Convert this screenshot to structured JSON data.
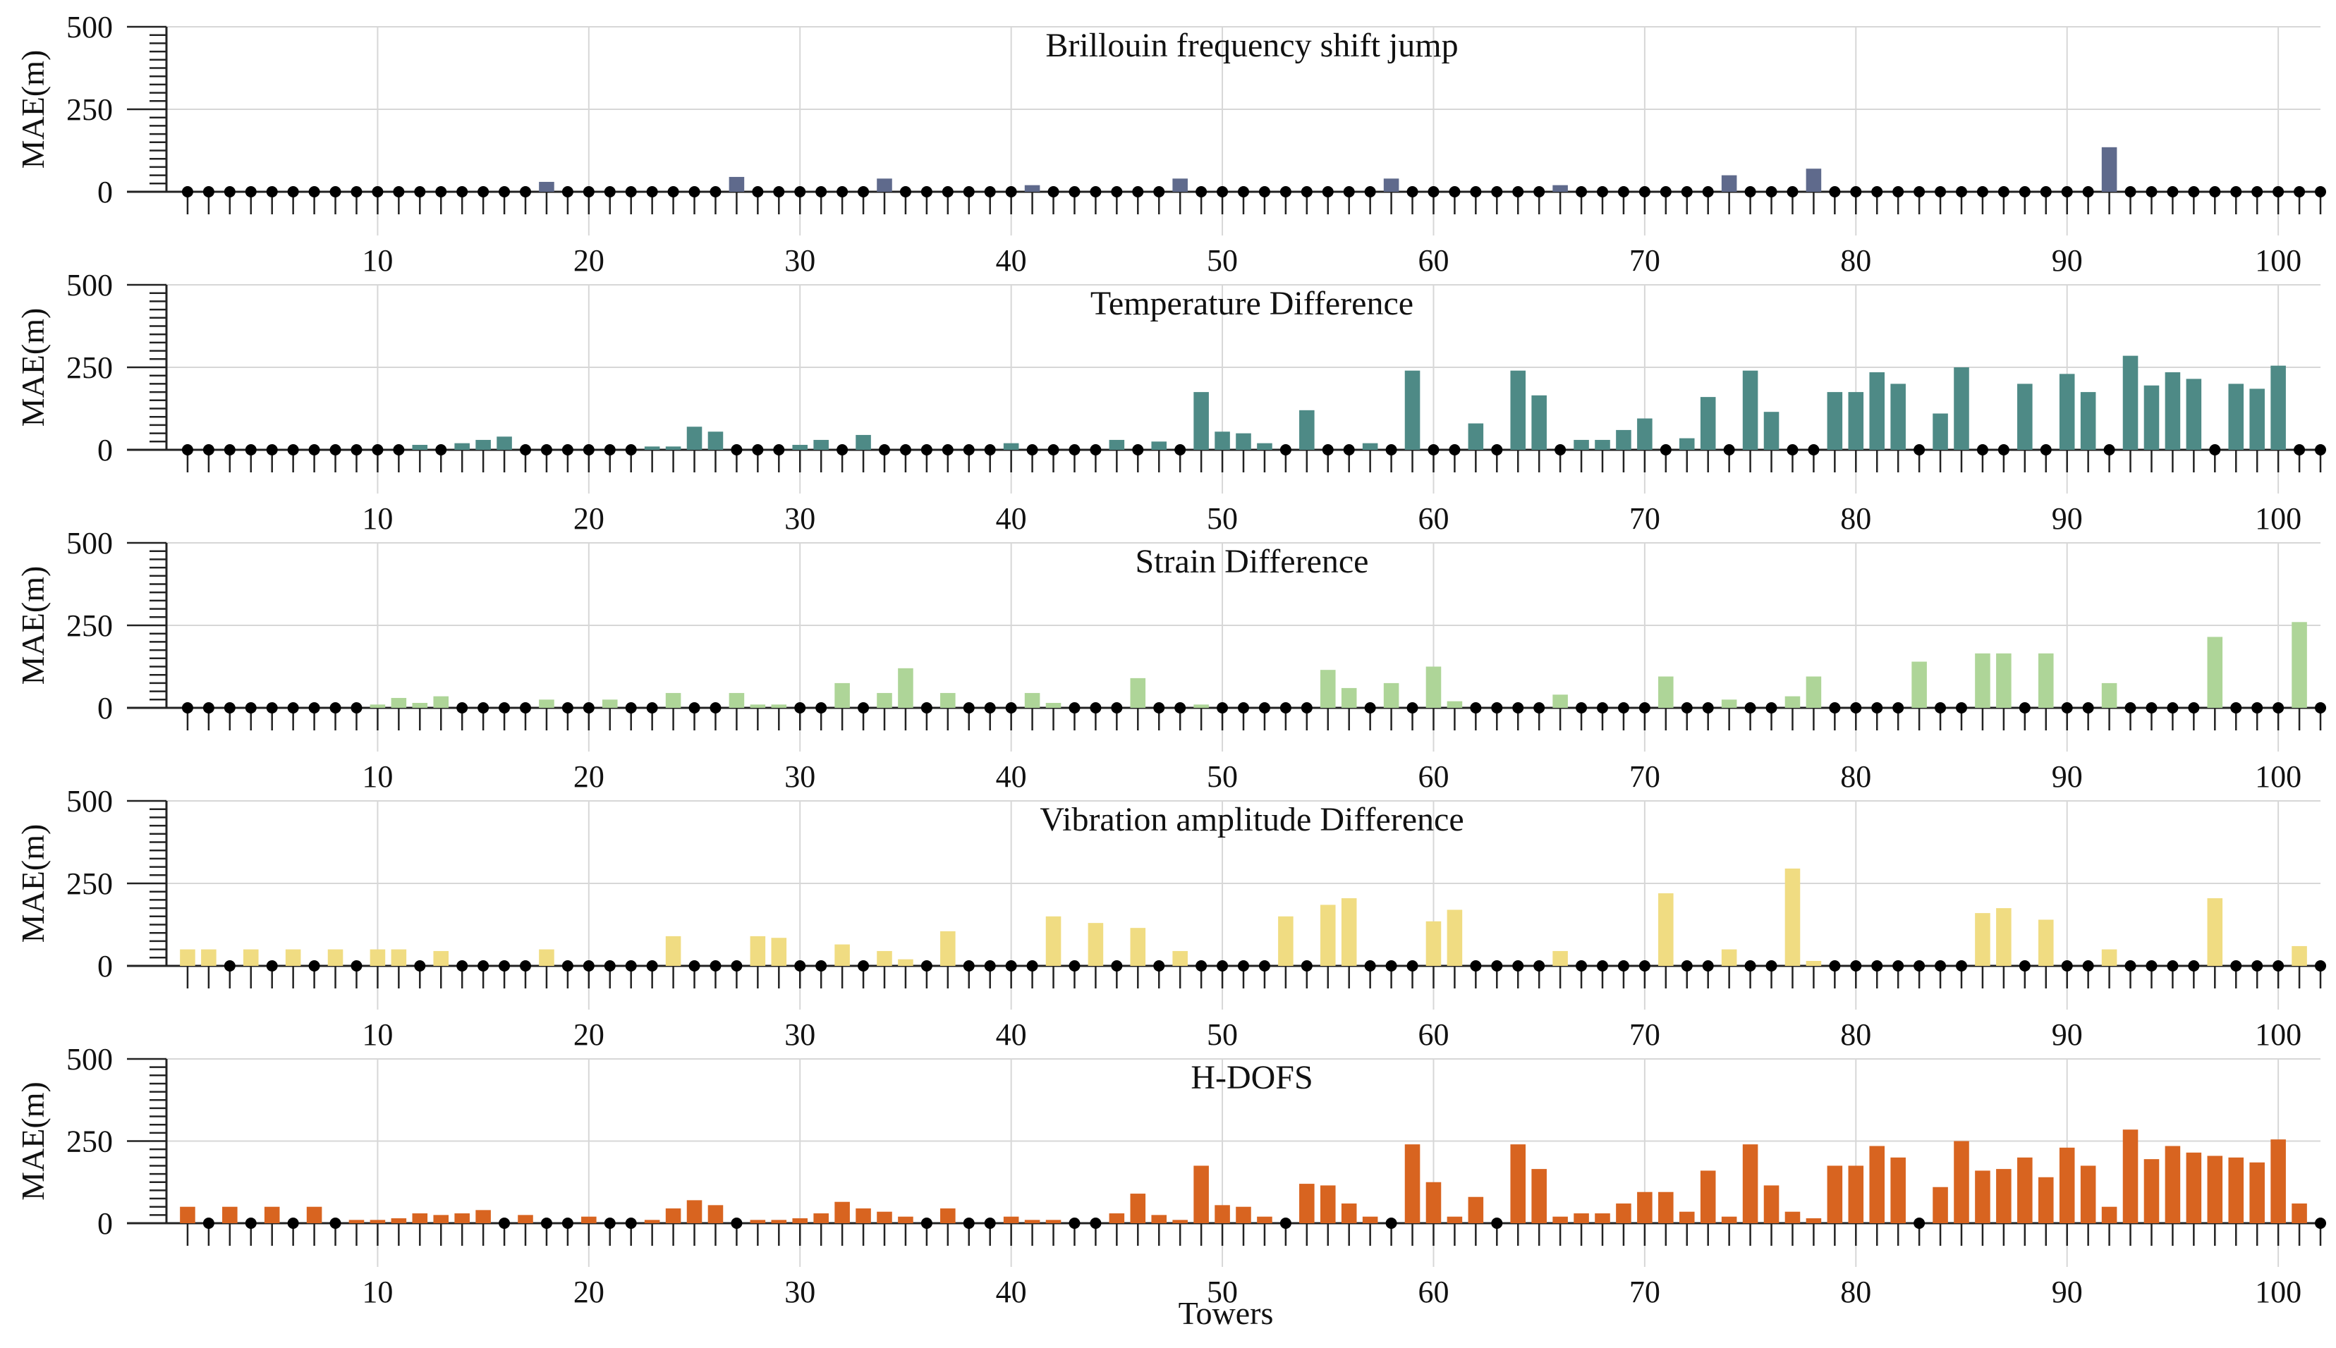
{
  "figure": {
    "xlabel": "Towers",
    "ylabel": "MAE(m)",
    "x_ticks": [
      10,
      20,
      30,
      40,
      50,
      60,
      70,
      80,
      90,
      100
    ],
    "y_ticks": [
      0,
      250,
      500
    ],
    "xlim": [
      0,
      102
    ],
    "ylim": [
      0,
      500
    ]
  },
  "chart_data": [
    {
      "type": "bar",
      "title": "Brillouin frequency shift jump",
      "color": "#5f6a8c",
      "zero_marker_color": "#000000",
      "x": [
        1,
        2,
        3,
        4,
        5,
        6,
        7,
        8,
        9,
        10,
        11,
        12,
        13,
        14,
        15,
        16,
        17,
        18,
        19,
        20,
        21,
        22,
        23,
        24,
        25,
        26,
        27,
        28,
        29,
        30,
        31,
        32,
        33,
        34,
        35,
        36,
        37,
        38,
        39,
        40,
        41,
        42,
        43,
        44,
        45,
        46,
        47,
        48,
        49,
        50,
        51,
        52,
        53,
        54,
        55,
        56,
        57,
        58,
        59,
        60,
        61,
        62,
        63,
        64,
        65,
        66,
        67,
        68,
        69,
        70,
        71,
        72,
        73,
        74,
        75,
        76,
        77,
        78,
        79,
        80,
        81,
        82,
        83,
        84,
        85,
        86,
        87,
        88,
        89,
        90,
        91,
        92,
        93,
        94,
        95,
        96,
        97,
        98,
        99,
        100,
        101,
        102
      ],
      "values": [
        0,
        0,
        0,
        0,
        0,
        0,
        0,
        0,
        0,
        0,
        0,
        0,
        0,
        0,
        0,
        0,
        0,
        30,
        0,
        0,
        0,
        0,
        0,
        0,
        0,
        0,
        45,
        0,
        0,
        0,
        0,
        0,
        0,
        40,
        0,
        0,
        0,
        0,
        0,
        0,
        20,
        0,
        0,
        0,
        0,
        0,
        0,
        40,
        0,
        0,
        0,
        0,
        0,
        0,
        0,
        0,
        0,
        40,
        0,
        0,
        0,
        0,
        0,
        0,
        0,
        20,
        0,
        0,
        0,
        0,
        0,
        0,
        0,
        50,
        0,
        0,
        0,
        70,
        0,
        0,
        0,
        0,
        0,
        0,
        0,
        0,
        0,
        0,
        0,
        0,
        0,
        135,
        0,
        0,
        0,
        0,
        0,
        0,
        0,
        0,
        0,
        0
      ],
      "xlabel": "",
      "ylabel": "MAE(m)",
      "ylim": [
        0,
        500
      ]
    },
    {
      "type": "bar",
      "title": "Temperature Difference",
      "color": "#4e8a86",
      "zero_marker_color": "#000000",
      "x": [
        1,
        2,
        3,
        4,
        5,
        6,
        7,
        8,
        9,
        10,
        11,
        12,
        13,
        14,
        15,
        16,
        17,
        18,
        19,
        20,
        21,
        22,
        23,
        24,
        25,
        26,
        27,
        28,
        29,
        30,
        31,
        32,
        33,
        34,
        35,
        36,
        37,
        38,
        39,
        40,
        41,
        42,
        43,
        44,
        45,
        46,
        47,
        48,
        49,
        50,
        51,
        52,
        53,
        54,
        55,
        56,
        57,
        58,
        59,
        60,
        61,
        62,
        63,
        64,
        65,
        66,
        67,
        68,
        69,
        70,
        71,
        72,
        73,
        74,
        75,
        76,
        77,
        78,
        79,
        80,
        81,
        82,
        83,
        84,
        85,
        86,
        87,
        88,
        89,
        90,
        91,
        92,
        93,
        94,
        95,
        96,
        97,
        98,
        99,
        100,
        101,
        102
      ],
      "values": [
        0,
        0,
        0,
        0,
        0,
        0,
        0,
        0,
        0,
        0,
        0,
        15,
        0,
        20,
        30,
        40,
        0,
        0,
        0,
        0,
        0,
        0,
        10,
        10,
        70,
        55,
        0,
        0,
        0,
        15,
        30,
        0,
        45,
        0,
        0,
        0,
        0,
        0,
        0,
        20,
        0,
        0,
        0,
        0,
        30,
        0,
        25,
        0,
        175,
        55,
        50,
        20,
        0,
        120,
        0,
        0,
        20,
        0,
        240,
        0,
        0,
        80,
        0,
        240,
        165,
        0,
        30,
        30,
        60,
        95,
        0,
        35,
        160,
        0,
        240,
        115,
        0,
        0,
        175,
        175,
        235,
        200,
        0,
        110,
        250,
        0,
        0,
        200,
        0,
        230,
        175,
        0,
        285,
        195,
        235,
        215,
        0,
        200,
        185,
        255,
        0,
        0
      ],
      "xlabel": "",
      "ylabel": "MAE(m)",
      "ylim": [
        0,
        500
      ]
    },
    {
      "type": "bar",
      "title": "Strain Difference",
      "color": "#aed598",
      "zero_marker_color": "#000000",
      "x": [
        1,
        2,
        3,
        4,
        5,
        6,
        7,
        8,
        9,
        10,
        11,
        12,
        13,
        14,
        15,
        16,
        17,
        18,
        19,
        20,
        21,
        22,
        23,
        24,
        25,
        26,
        27,
        28,
        29,
        30,
        31,
        32,
        33,
        34,
        35,
        36,
        37,
        38,
        39,
        40,
        41,
        42,
        43,
        44,
        45,
        46,
        47,
        48,
        49,
        50,
        51,
        52,
        53,
        54,
        55,
        56,
        57,
        58,
        59,
        60,
        61,
        62,
        63,
        64,
        65,
        66,
        67,
        68,
        69,
        70,
        71,
        72,
        73,
        74,
        75,
        76,
        77,
        78,
        79,
        80,
        81,
        82,
        83,
        84,
        85,
        86,
        87,
        88,
        89,
        90,
        91,
        92,
        93,
        94,
        95,
        96,
        97,
        98,
        99,
        100,
        101,
        102
      ],
      "values": [
        0,
        0,
        0,
        0,
        0,
        0,
        0,
        0,
        0,
        10,
        30,
        15,
        35,
        0,
        0,
        0,
        0,
        25,
        0,
        0,
        25,
        0,
        0,
        45,
        0,
        0,
        45,
        10,
        10,
        0,
        0,
        75,
        0,
        45,
        120,
        0,
        45,
        0,
        0,
        0,
        45,
        15,
        0,
        0,
        0,
        90,
        0,
        0,
        10,
        0,
        0,
        0,
        0,
        0,
        115,
        60,
        0,
        75,
        0,
        125,
        20,
        0,
        0,
        0,
        0,
        40,
        0,
        0,
        0,
        0,
        95,
        0,
        0,
        25,
        0,
        0,
        35,
        95,
        0,
        0,
        0,
        0,
        140,
        0,
        0,
        165,
        165,
        0,
        165,
        0,
        0,
        75,
        0,
        0,
        0,
        0,
        215,
        0,
        0,
        0,
        260,
        0
      ],
      "xlabel": "",
      "ylabel": "MAE(m)",
      "ylim": [
        0,
        500
      ]
    },
    {
      "type": "bar",
      "title": "Vibration amplitude Difference",
      "color": "#f0dc82",
      "zero_marker_color": "#000000",
      "x": [
        1,
        2,
        3,
        4,
        5,
        6,
        7,
        8,
        9,
        10,
        11,
        12,
        13,
        14,
        15,
        16,
        17,
        18,
        19,
        20,
        21,
        22,
        23,
        24,
        25,
        26,
        27,
        28,
        29,
        30,
        31,
        32,
        33,
        34,
        35,
        36,
        37,
        38,
        39,
        40,
        41,
        42,
        43,
        44,
        45,
        46,
        47,
        48,
        49,
        50,
        51,
        52,
        53,
        54,
        55,
        56,
        57,
        58,
        59,
        60,
        61,
        62,
        63,
        64,
        65,
        66,
        67,
        68,
        69,
        70,
        71,
        72,
        73,
        74,
        75,
        76,
        77,
        78,
        79,
        80,
        81,
        82,
        83,
        84,
        85,
        86,
        87,
        88,
        89,
        90,
        91,
        92,
        93,
        94,
        95,
        96,
        97,
        98,
        99,
        100,
        101,
        102
      ],
      "values": [
        50,
        50,
        0,
        50,
        0,
        50,
        0,
        50,
        0,
        50,
        50,
        0,
        45,
        0,
        0,
        0,
        0,
        50,
        0,
        0,
        0,
        0,
        0,
        90,
        0,
        0,
        0,
        90,
        85,
        0,
        0,
        65,
        0,
        45,
        20,
        0,
        105,
        0,
        0,
        0,
        0,
        150,
        0,
        130,
        0,
        115,
        0,
        45,
        0,
        0,
        0,
        0,
        150,
        0,
        185,
        205,
        0,
        0,
        0,
        135,
        170,
        0,
        0,
        0,
        0,
        45,
        0,
        0,
        0,
        0,
        220,
        0,
        0,
        50,
        0,
        0,
        295,
        15,
        0,
        0,
        0,
        0,
        0,
        0,
        0,
        160,
        175,
        0,
        140,
        0,
        0,
        50,
        0,
        0,
        0,
        0,
        205,
        0,
        0,
        0,
        60,
        0
      ],
      "xlabel": "",
      "ylabel": "MAE(m)",
      "ylim": [
        0,
        500
      ]
    },
    {
      "type": "bar",
      "title": "H-DOFS",
      "color": "#d86420",
      "zero_marker_color": "#000000",
      "x": [
        1,
        2,
        3,
        4,
        5,
        6,
        7,
        8,
        9,
        10,
        11,
        12,
        13,
        14,
        15,
        16,
        17,
        18,
        19,
        20,
        21,
        22,
        23,
        24,
        25,
        26,
        27,
        28,
        29,
        30,
        31,
        32,
        33,
        34,
        35,
        36,
        37,
        38,
        39,
        40,
        41,
        42,
        43,
        44,
        45,
        46,
        47,
        48,
        49,
        50,
        51,
        52,
        53,
        54,
        55,
        56,
        57,
        58,
        59,
        60,
        61,
        62,
        63,
        64,
        65,
        66,
        67,
        68,
        69,
        70,
        71,
        72,
        73,
        74,
        75,
        76,
        77,
        78,
        79,
        80,
        81,
        82,
        83,
        84,
        85,
        86,
        87,
        88,
        89,
        90,
        91,
        92,
        93,
        94,
        95,
        96,
        97,
        98,
        99,
        100,
        101,
        102
      ],
      "values": [
        50,
        0,
        50,
        0,
        50,
        0,
        50,
        0,
        10,
        10,
        15,
        30,
        25,
        30,
        40,
        0,
        25,
        0,
        0,
        20,
        0,
        0,
        10,
        45,
        70,
        55,
        0,
        10,
        10,
        15,
        30,
        65,
        45,
        35,
        20,
        0,
        45,
        0,
        0,
        20,
        10,
        10,
        0,
        0,
        30,
        90,
        25,
        10,
        175,
        55,
        50,
        20,
        0,
        120,
        115,
        60,
        20,
        0,
        240,
        125,
        20,
        80,
        0,
        240,
        165,
        20,
        30,
        30,
        60,
        95,
        95,
        35,
        160,
        20,
        240,
        115,
        35,
        15,
        175,
        175,
        235,
        200,
        0,
        110,
        250,
        160,
        165,
        200,
        140,
        230,
        175,
        50,
        285,
        195,
        235,
        215,
        205,
        200,
        185,
        255,
        60,
        0
      ],
      "xlabel": "Towers",
      "ylabel": "MAE(m)",
      "ylim": [
        0,
        500
      ]
    }
  ]
}
